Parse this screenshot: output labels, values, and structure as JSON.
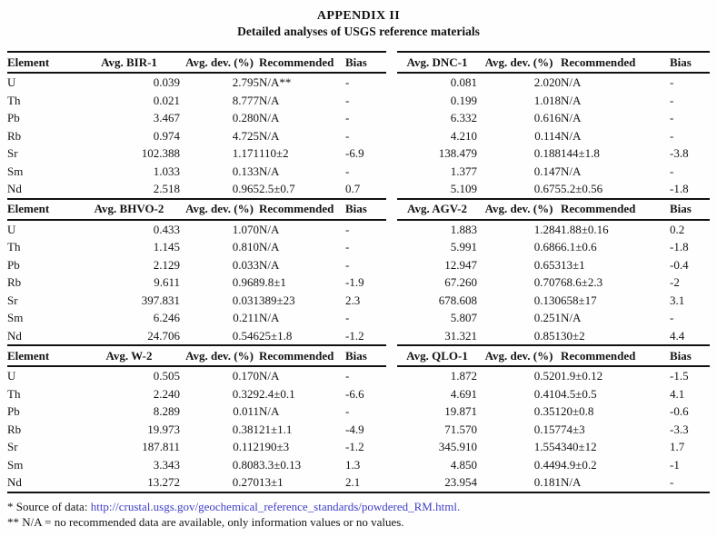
{
  "title": "APPENDIX II",
  "subtitle": "Detailed analyses of USGS reference materials",
  "colors": {
    "link": "#3f3fc8",
    "text": "#141414",
    "rule": "#111111"
  },
  "sections": [
    {
      "left": {
        "headers": [
          "Element",
          "Avg. BIR-1",
          "Avg. dev. (%)",
          "Recommended",
          "Bias"
        ],
        "rows": [
          [
            "U",
            "0.039",
            "2.795",
            "N/A**",
            "-"
          ],
          [
            "Th",
            "0.021",
            "8.777",
            "N/A",
            "-"
          ],
          [
            "Pb",
            "3.467",
            "0.280",
            "N/A",
            "-"
          ],
          [
            "Rb",
            "0.974",
            "4.725",
            "N/A",
            "-"
          ],
          [
            "Sr",
            "102.388",
            "1.171",
            "110±2",
            "-6.9"
          ],
          [
            "Sm",
            "1.033",
            "0.133",
            "N/A",
            "-"
          ],
          [
            "Nd",
            "2.518",
            "0.965",
            "2.5±0.7",
            "0.7"
          ]
        ]
      },
      "right": {
        "headers": [
          "Avg. DNC-1",
          "Avg. dev. (%)",
          "Recommended",
          "Bias"
        ],
        "rows": [
          [
            "0.081",
            "2.020",
            "N/A",
            "-"
          ],
          [
            "0.199",
            "1.018",
            "N/A",
            "-"
          ],
          [
            "6.332",
            "0.616",
            "N/A",
            "-"
          ],
          [
            "4.210",
            "0.114",
            "N/A",
            "-"
          ],
          [
            "138.479",
            "0.188",
            "144±1.8",
            "-3.8"
          ],
          [
            "1.377",
            "0.147",
            "N/A",
            "-"
          ],
          [
            "5.109",
            "0.675",
            "5.2±0.56",
            "-1.8"
          ]
        ]
      }
    },
    {
      "left": {
        "headers": [
          "Element",
          "Avg. BHVO-2",
          "Avg. dev. (%)",
          "Recommended",
          "Bias"
        ],
        "rows": [
          [
            "U",
            "0.433",
            "1.070",
            "N/A",
            "-"
          ],
          [
            "Th",
            "1.145",
            "0.810",
            "N/A",
            "-"
          ],
          [
            "Pb",
            "2.129",
            "0.033",
            "N/A",
            "-"
          ],
          [
            "Rb",
            "9.611",
            "0.968",
            "9.8±1",
            "-1.9"
          ],
          [
            "Sr",
            "397.831",
            "0.031",
            "389±23",
            "2.3"
          ],
          [
            "Sm",
            "6.246",
            "0.211",
            "N/A",
            "-"
          ],
          [
            "Nd",
            "24.706",
            "0.546",
            "25±1.8",
            "-1.2"
          ]
        ]
      },
      "right": {
        "headers": [
          "Avg. AGV-2",
          "Avg. dev. (%)",
          "Recommended",
          "Bias"
        ],
        "rows": [
          [
            "1.883",
            "1.284",
            "1.88±0.16",
            "0.2"
          ],
          [
            "5.991",
            "0.686",
            "6.1±0.6",
            "-1.8"
          ],
          [
            "12.947",
            "0.653",
            "13±1",
            "-0.4"
          ],
          [
            "67.260",
            "0.707",
            "68.6±2.3",
            "-2"
          ],
          [
            "678.608",
            "0.130",
            "658±17",
            "3.1"
          ],
          [
            "5.807",
            "0.251",
            "N/A",
            "-"
          ],
          [
            "31.321",
            "0.851",
            "30±2",
            "4.4"
          ]
        ]
      }
    },
    {
      "left": {
        "headers": [
          "Element",
          "Avg. W-2",
          "Avg. dev. (%)",
          "Recommended",
          "Bias"
        ],
        "rows": [
          [
            "U",
            "0.505",
            "0.170",
            "N/A",
            "-"
          ],
          [
            "Th",
            "2.240",
            "0.329",
            "2.4±0.1",
            "-6.6"
          ],
          [
            "Pb",
            "8.289",
            "0.011",
            "N/A",
            "-"
          ],
          [
            "Rb",
            "19.973",
            "0.381",
            "21±1.1",
            "-4.9"
          ],
          [
            "Sr",
            "187.811",
            "0.112",
            "190±3",
            "-1.2"
          ],
          [
            "Sm",
            "3.343",
            "0.808",
            "3.3±0.13",
            "1.3"
          ],
          [
            "Nd",
            "13.272",
            "0.270",
            "13±1",
            "2.1"
          ]
        ]
      },
      "right": {
        "headers": [
          "Avg. QLO-1",
          "Avg. dev. (%)",
          "Recommended",
          "Bias"
        ],
        "rows": [
          [
            "1.872",
            "0.520",
            "1.9±0.12",
            "-1.5"
          ],
          [
            "4.691",
            "0.410",
            "4.5±0.5",
            "4.1"
          ],
          [
            "19.871",
            "0.351",
            "20±0.8",
            "-0.6"
          ],
          [
            "71.570",
            "0.157",
            "74±3",
            "-3.3"
          ],
          [
            "345.910",
            "1.554",
            "340±12",
            "1.7"
          ],
          [
            "4.850",
            "0.449",
            "4.9±0.2",
            "-1"
          ],
          [
            "23.954",
            "0.181",
            "N/A",
            "-"
          ]
        ]
      }
    }
  ],
  "footnotes": {
    "source_prefix": "* Source of data: ",
    "source_link": "http://crustal.usgs.gov/geochemical_reference_standards/powdered_RM.html.",
    "na_note": "** N/A = no recommended data are available, only information values or no values."
  }
}
